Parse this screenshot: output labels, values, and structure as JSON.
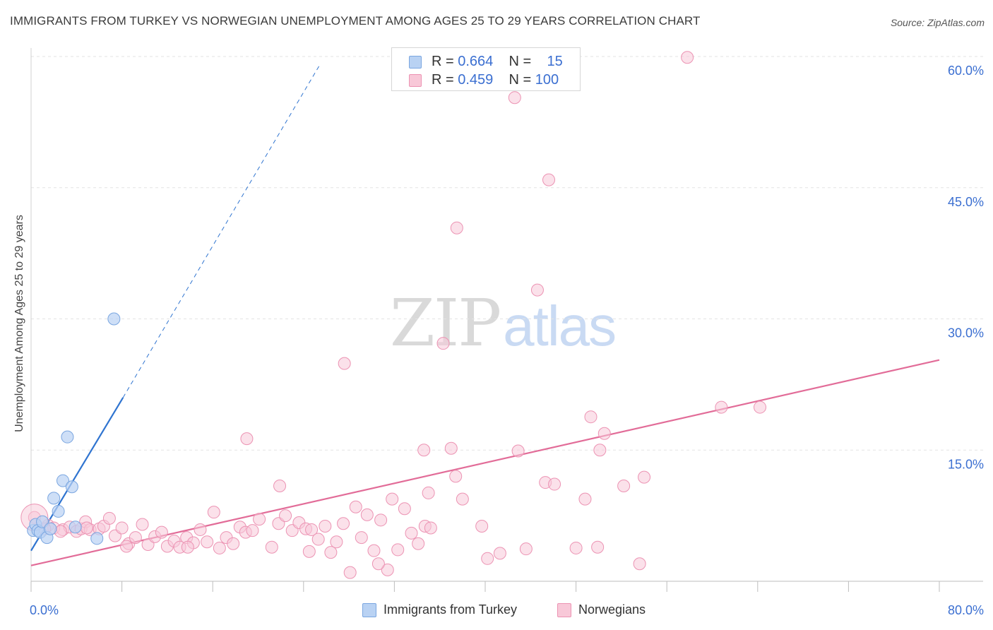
{
  "header": {
    "title": "IMMIGRANTS FROM TURKEY VS NORWEGIAN UNEMPLOYMENT AMONG AGES 25 TO 29 YEARS CORRELATION CHART",
    "source": "Source: ZipAtlas.com"
  },
  "watermark": {
    "zip": "ZIP",
    "atlas": "atlas"
  },
  "legend_top": [
    {
      "r_label": "R =",
      "r_value": "0.664",
      "n_label": "N =",
      "n_value": "15"
    },
    {
      "r_label": "R =",
      "r_value": "0.459",
      "n_label": "N =",
      "n_value": "100"
    }
  ],
  "legend_bottom": [
    {
      "label": "Immigrants from Turkey"
    },
    {
      "label": "Norwegians"
    }
  ],
  "colors": {
    "turkey_fill": "#b9d2f3",
    "turkey_stroke": "#7aa6e0",
    "turkey_line": "#2f74d0",
    "norway_fill": "#f8c8d8",
    "norway_stroke": "#ec93b3",
    "norway_line": "#e26c98",
    "tick_label": "#3b6fd1",
    "grid": "#e3e3e3"
  },
  "chart_data": {
    "type": "scatter",
    "title": "IMMIGRANTS FROM TURKEY VS NORWEGIAN UNEMPLOYMENT AMONG AGES 25 TO 29 YEARS CORRELATION CHART",
    "xlabel": "",
    "ylabel": "Unemployment Among Ages 25 to 29 years",
    "xlim": [
      0,
      80
    ],
    "ylim": [
      0,
      60
    ],
    "x_tick_labels": [
      "0.0%",
      "80.0%"
    ],
    "y_ticks": [
      15,
      30,
      45,
      60
    ],
    "y_tick_labels": [
      "15.0%",
      "30.0%",
      "45.0%",
      "60.0%"
    ],
    "series": [
      {
        "name": "Immigrants from Turkey",
        "color": "#b9d2f3",
        "r": 0.664,
        "n": 15,
        "points": [
          [
            0.2,
            5.8
          ],
          [
            0.4,
            6.5
          ],
          [
            0.6,
            5.8
          ],
          [
            0.8,
            5.6
          ],
          [
            1.0,
            6.8
          ],
          [
            1.4,
            5.0
          ],
          [
            1.7,
            6.0
          ],
          [
            2.0,
            9.5
          ],
          [
            2.4,
            8.0
          ],
          [
            2.8,
            11.5
          ],
          [
            3.2,
            16.5
          ],
          [
            3.6,
            10.8
          ],
          [
            3.9,
            6.2
          ],
          [
            5.8,
            4.9
          ],
          [
            7.3,
            30.0
          ]
        ],
        "trend": {
          "x0": 0,
          "y0": 3.5,
          "x1": 8.1,
          "y1": 21.0,
          "dash_to_x": 25.5,
          "dash_to_y": 59.2
        }
      },
      {
        "name": "Norwegians",
        "color": "#f8c8d8",
        "r": 0.459,
        "n": 100,
        "points": [
          [
            0.3,
            7.3
          ],
          [
            1.5,
            6.4
          ],
          [
            2.0,
            6.1
          ],
          [
            2.8,
            5.9
          ],
          [
            3.4,
            6.2
          ],
          [
            4.0,
            5.7
          ],
          [
            4.4,
            6.0
          ],
          [
            4.8,
            6.8
          ],
          [
            5.2,
            5.9
          ],
          [
            6.0,
            6.0
          ],
          [
            6.4,
            6.3
          ],
          [
            6.9,
            7.2
          ],
          [
            7.4,
            5.2
          ],
          [
            8.0,
            6.1
          ],
          [
            8.6,
            4.3
          ],
          [
            9.2,
            5.0
          ],
          [
            9.8,
            6.5
          ],
          [
            10.3,
            4.2
          ],
          [
            10.9,
            5.1
          ],
          [
            11.5,
            5.6
          ],
          [
            12.0,
            4.0
          ],
          [
            12.6,
            4.6
          ],
          [
            13.1,
            3.9
          ],
          [
            13.7,
            5.0
          ],
          [
            14.3,
            4.4
          ],
          [
            14.9,
            5.9
          ],
          [
            15.5,
            4.5
          ],
          [
            16.1,
            7.9
          ],
          [
            16.6,
            3.8
          ],
          [
            17.2,
            5.0
          ],
          [
            17.8,
            4.3
          ],
          [
            18.4,
            6.2
          ],
          [
            18.9,
            5.6
          ],
          [
            19.5,
            5.8
          ],
          [
            20.1,
            7.1
          ],
          [
            21.2,
            3.9
          ],
          [
            21.8,
            6.6
          ],
          [
            22.4,
            7.5
          ],
          [
            23.0,
            5.8
          ],
          [
            23.6,
            6.7
          ],
          [
            24.2,
            6.0
          ],
          [
            24.7,
            5.9
          ],
          [
            25.3,
            4.8
          ],
          [
            25.9,
            6.3
          ],
          [
            26.4,
            3.3
          ],
          [
            26.9,
            4.5
          ],
          [
            27.5,
            6.6
          ],
          [
            28.1,
            1.0
          ],
          [
            28.6,
            8.5
          ],
          [
            29.1,
            5.0
          ],
          [
            29.6,
            7.6
          ],
          [
            30.2,
            3.5
          ],
          [
            30.8,
            7.0
          ],
          [
            31.4,
            1.3
          ],
          [
            31.8,
            9.4
          ],
          [
            32.3,
            3.6
          ],
          [
            32.9,
            8.3
          ],
          [
            33.5,
            5.5
          ],
          [
            34.1,
            4.3
          ],
          [
            34.7,
            6.3
          ],
          [
            35.2,
            6.1
          ],
          [
            36.3,
            27.2
          ],
          [
            37.4,
            12.0
          ],
          [
            38.0,
            9.4
          ],
          [
            39.7,
            6.3
          ],
          [
            40.2,
            2.6
          ],
          [
            41.3,
            3.2
          ],
          [
            42.6,
            55.3
          ],
          [
            42.9,
            14.9
          ],
          [
            43.6,
            3.7
          ],
          [
            44.6,
            33.3
          ],
          [
            45.3,
            11.3
          ],
          [
            46.1,
            11.1
          ],
          [
            48.0,
            3.8
          ],
          [
            48.8,
            9.4
          ],
          [
            49.3,
            18.8
          ],
          [
            50.1,
            15.0
          ],
          [
            50.5,
            16.9
          ],
          [
            52.2,
            10.9
          ],
          [
            53.6,
            2.0
          ],
          [
            54.0,
            11.9
          ],
          [
            57.8,
            59.9
          ],
          [
            60.8,
            19.9
          ],
          [
            64.2,
            19.9
          ],
          [
            27.6,
            24.9
          ],
          [
            21.9,
            10.9
          ],
          [
            37.5,
            40.4
          ],
          [
            45.6,
            45.9
          ],
          [
            19.0,
            16.3
          ],
          [
            34.6,
            15.0
          ],
          [
            37.0,
            15.2
          ],
          [
            35.0,
            10.1
          ],
          [
            24.5,
            3.4
          ],
          [
            13.8,
            3.9
          ],
          [
            8.4,
            4.0
          ],
          [
            4.9,
            6.1
          ],
          [
            2.6,
            5.7
          ],
          [
            1.2,
            6.0
          ],
          [
            30.6,
            2.0
          ],
          [
            49.9,
            3.9
          ]
        ],
        "trend": {
          "x0": 0,
          "y0": 1.8,
          "x1": 80,
          "y1": 25.3
        }
      }
    ]
  }
}
